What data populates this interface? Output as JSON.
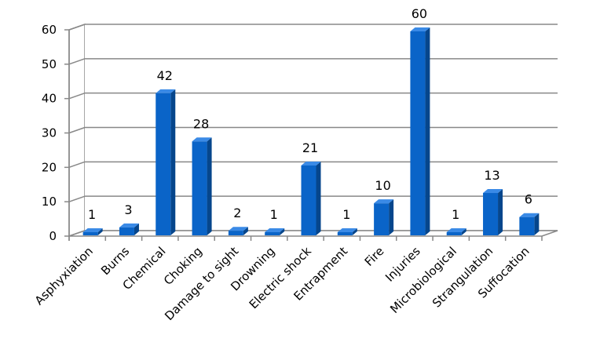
{
  "chart_data": {
    "type": "bar",
    "title": "",
    "xlabel": "",
    "ylabel": "",
    "ylim": [
      0,
      60
    ],
    "yticks": [
      0,
      10,
      20,
      30,
      40,
      50,
      60
    ],
    "grid": true,
    "legend": "none",
    "style": "3d-column",
    "colors": {
      "bar_front": "#0a64c8",
      "bar_side": "#06468c",
      "bar_top": "#3a8ae6",
      "grid": "#888888",
      "wall": "#ffffff"
    },
    "categories": [
      "Asphyxiation",
      "Burns",
      "Chemical",
      "Choking",
      "Damage to sight",
      "Drowning",
      "Electric shock",
      "Entrapment",
      "Fire",
      "Injuries",
      "Microbiological",
      "Strangulation",
      "Suffocation"
    ],
    "values": [
      1,
      3,
      42,
      28,
      2,
      1,
      21,
      1,
      10,
      60,
      1,
      13,
      6
    ],
    "data_labels": [
      "1",
      "3",
      "42",
      "28",
      "2",
      "1",
      "21",
      "1",
      "10",
      "60",
      "1",
      "13",
      "6"
    ]
  }
}
